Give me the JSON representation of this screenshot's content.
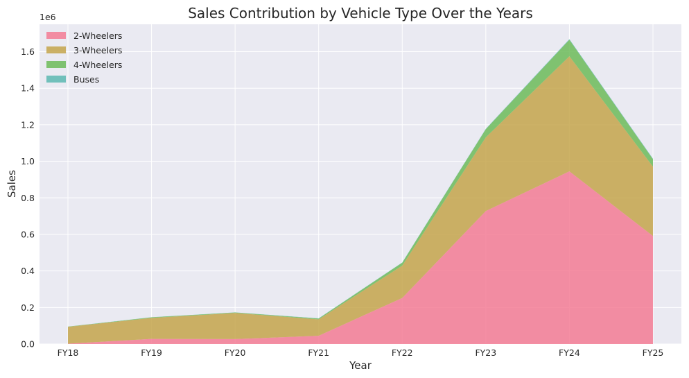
{
  "chart_data": {
    "type": "area",
    "stacked": true,
    "title": "Sales Contribution by Vehicle Type Over the Years",
    "xlabel": "Year",
    "ylabel": "Sales",
    "y_offset_label": "1e6",
    "categories": [
      "FY18",
      "FY19",
      "FY20",
      "FY21",
      "FY22",
      "FY23",
      "FY24",
      "FY25"
    ],
    "ylim": [
      0,
      1750000
    ],
    "yticks": [
      0,
      200000,
      400000,
      600000,
      800000,
      1000000,
      1200000,
      1400000,
      1600000
    ],
    "ytick_labels": [
      "0.0",
      "0.2",
      "0.4",
      "0.6",
      "0.8",
      "1.0",
      "1.2",
      "1.4",
      "1.6"
    ],
    "grid": true,
    "legend_position": "top-left",
    "series": [
      {
        "name": "2-Wheelers",
        "color": "#f37b94",
        "values": [
          2000,
          28000,
          27000,
          45000,
          252000,
          728000,
          945000,
          591000
        ]
      },
      {
        "name": "3-Wheelers",
        "color": "#c4a54b",
        "values": [
          92000,
          115000,
          143000,
          90000,
          177000,
          403000,
          630000,
          380000
        ]
      },
      {
        "name": "4-Wheelers",
        "color": "#6cbb59",
        "values": [
          1200,
          3000,
          2500,
          4500,
          16000,
          45000,
          90000,
          40000
        ]
      },
      {
        "name": "Buses",
        "color": "#5cb8b2",
        "values": [
          200,
          500,
          600,
          1000,
          1200,
          1800,
          3500,
          3000
        ]
      }
    ]
  }
}
